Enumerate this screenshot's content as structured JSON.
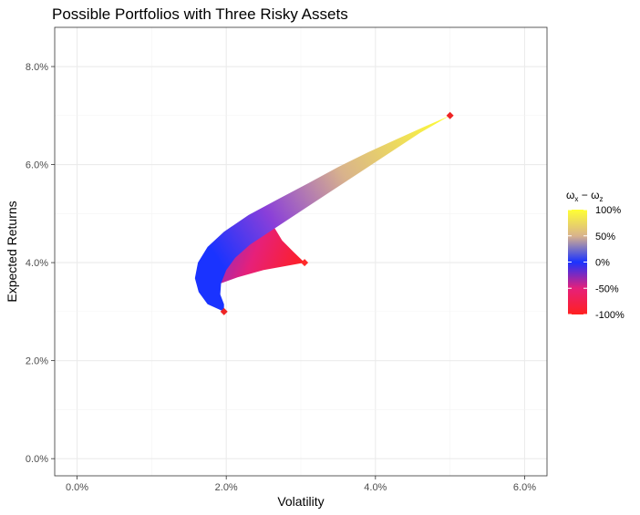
{
  "chart_data": {
    "type": "area",
    "title": "Possible Portfolios with Three Risky Assets",
    "xlabel": "Volatility",
    "ylabel": "Expected Returns",
    "xlim": [
      -0.003,
      0.063
    ],
    "ylim": [
      -0.0035,
      0.088
    ],
    "x_ticks": [
      0.0,
      0.02,
      0.04,
      0.06
    ],
    "x_tick_labels": [
      "0.0%",
      "2.0%",
      "4.0%",
      "6.0%"
    ],
    "y_ticks": [
      0.0,
      0.02,
      0.04,
      0.06,
      0.08
    ],
    "y_tick_labels": [
      "0.0%",
      "2.0%",
      "4.0%",
      "6.0%",
      "8.0%"
    ],
    "grid": true,
    "legend": {
      "position": "right",
      "title_main": "ω",
      "title_sub1": "x",
      "title_sep": " − ",
      "title_sub2": "z",
      "labels": [
        "100%",
        "50%",
        "0%",
        "-50%",
        "-100%"
      ],
      "values": [
        1.0,
        0.5,
        0.0,
        -0.5,
        -1.0
      ],
      "colors": [
        "#ffff33",
        "#d9b38c",
        "#1a33ff",
        "#e6207a",
        "#ff2020"
      ]
    },
    "assets": [
      {
        "x": 0.0197,
        "y": 0.03,
        "color": "#ee2424"
      },
      {
        "x": 0.0305,
        "y": 0.04,
        "color": "#ff2a2a"
      },
      {
        "x": 0.05,
        "y": 0.07,
        "color": "#ee2424"
      }
    ],
    "frontier_outer": [
      [
        0.0197,
        0.03
      ],
      [
        0.0175,
        0.0315
      ],
      [
        0.0163,
        0.034
      ],
      [
        0.0158,
        0.0368
      ],
      [
        0.0162,
        0.04
      ],
      [
        0.0175,
        0.0432
      ],
      [
        0.0197,
        0.0463
      ],
      [
        0.023,
        0.0497
      ],
      [
        0.027,
        0.053
      ],
      [
        0.031,
        0.0562
      ],
      [
        0.035,
        0.0595
      ],
      [
        0.039,
        0.0625
      ],
      [
        0.043,
        0.0653
      ],
      [
        0.0465,
        0.0677
      ],
      [
        0.05,
        0.07
      ]
    ],
    "frontier_inner": [
      [
        0.05,
        0.07
      ],
      [
        0.046,
        0.0665
      ],
      [
        0.042,
        0.0625
      ],
      [
        0.038,
        0.0585
      ],
      [
        0.034,
        0.0545
      ],
      [
        0.03,
        0.0505
      ],
      [
        0.0265,
        0.047
      ],
      [
        0.0232,
        0.0437
      ],
      [
        0.0212,
        0.041
      ],
      [
        0.02,
        0.0385
      ],
      [
        0.0193,
        0.0358
      ],
      [
        0.0192,
        0.0335
      ],
      [
        0.0197,
        0.0315
      ],
      [
        0.0197,
        0.03
      ]
    ],
    "lower_region": [
      [
        0.0188,
        0.0355
      ],
      [
        0.0215,
        0.037
      ],
      [
        0.025,
        0.0385
      ],
      [
        0.0305,
        0.04
      ],
      [
        0.029,
        0.0422
      ],
      [
        0.0275,
        0.0445
      ],
      [
        0.0265,
        0.047
      ],
      [
        0.0262,
        0.0493
      ],
      [
        0.0232,
        0.047
      ],
      [
        0.0212,
        0.044
      ],
      [
        0.02,
        0.041
      ],
      [
        0.019,
        0.038
      ]
    ]
  }
}
